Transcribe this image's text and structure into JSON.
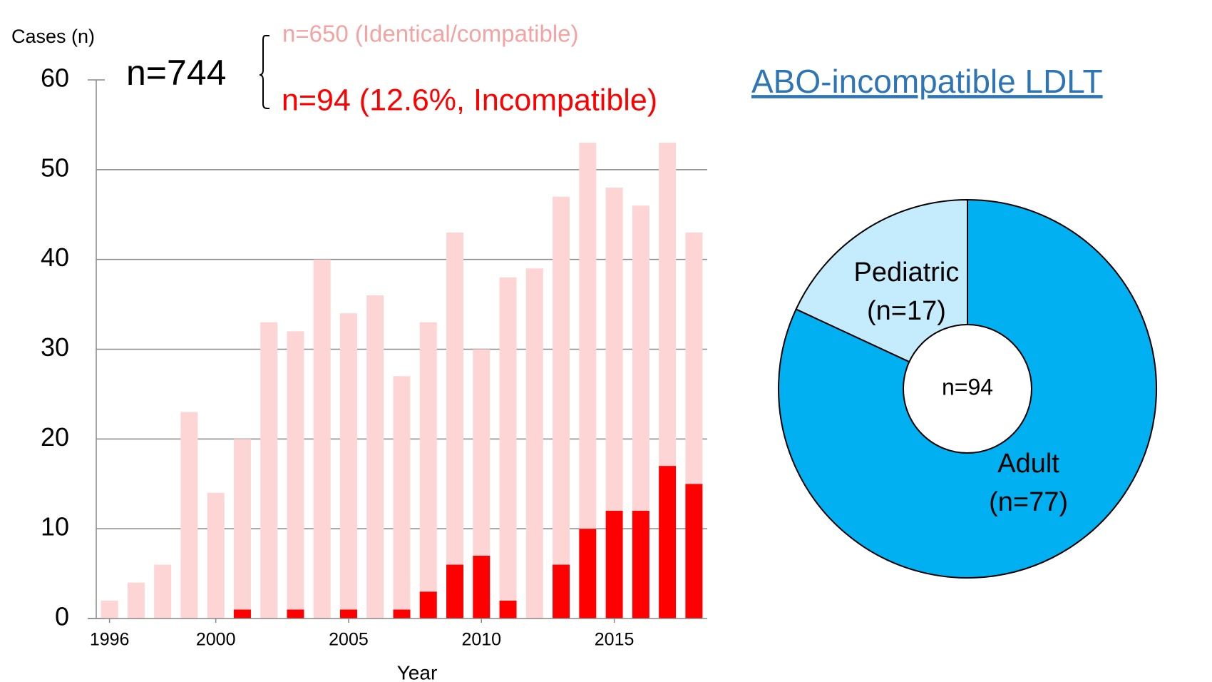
{
  "chart_data": [
    {
      "type": "bar",
      "y_label": "Cases (n)",
      "x_label": "Year",
      "annotations": [
        "n=744",
        "n=650 (Identical/compatible)",
        "n=94 (12.6%, Incompatible)"
      ],
      "x": [
        1996,
        1997,
        1998,
        1999,
        2000,
        2001,
        2002,
        2003,
        2004,
        2005,
        2006,
        2007,
        2008,
        2009,
        2010,
        2011,
        2012,
        2013,
        2014,
        2015,
        2016,
        2017,
        2018
      ],
      "series": [
        {
          "name": "Incompatible",
          "color": "#ff0000",
          "values": [
            0,
            0,
            0,
            0,
            0,
            1,
            0,
            1,
            0,
            1,
            0,
            1,
            3,
            6,
            7,
            2,
            0,
            6,
            10,
            12,
            12,
            17,
            15
          ]
        },
        {
          "name": "Identical/compatible",
          "color": "#fdd5d5",
          "values": [
            2,
            4,
            6,
            23,
            14,
            19,
            33,
            31,
            40,
            33,
            36,
            26,
            30,
            37,
            23,
            36,
            39,
            41,
            43,
            36,
            34,
            36,
            28
          ]
        }
      ],
      "stacked": true,
      "xlim": [
        1995.5,
        2018.5
      ],
      "xticks": [
        1996,
        2000,
        2005,
        2010,
        2015
      ],
      "ylim": [
        0,
        60
      ],
      "yticks": [
        0,
        10,
        20,
        30,
        40,
        50,
        60
      ],
      "grid": true
    },
    {
      "type": "pie",
      "title": "ABO-incompatible LDLT",
      "center_label": "n=94",
      "categories": [
        "Adult",
        "Pediatric"
      ],
      "values": [
        77,
        17
      ],
      "value_labels": [
        "(n=77)",
        "(n=17)"
      ],
      "colors": [
        "#00b0f0",
        "#c5ecfd"
      ],
      "donut": true
    }
  ]
}
